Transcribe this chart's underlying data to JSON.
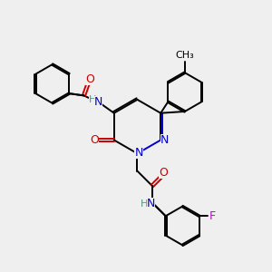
{
  "bg_color": "#efefef",
  "bond_color": "#000000",
  "N_color": "#0000cc",
  "O_color": "#cc0000",
  "F_color": "#cc00cc",
  "H_color": "#4a9a8a",
  "line_width": 1.4,
  "figsize": [
    3.0,
    3.0
  ],
  "dpi": 100,
  "xlim": [
    0,
    10
  ],
  "ylim": [
    0,
    10
  ]
}
